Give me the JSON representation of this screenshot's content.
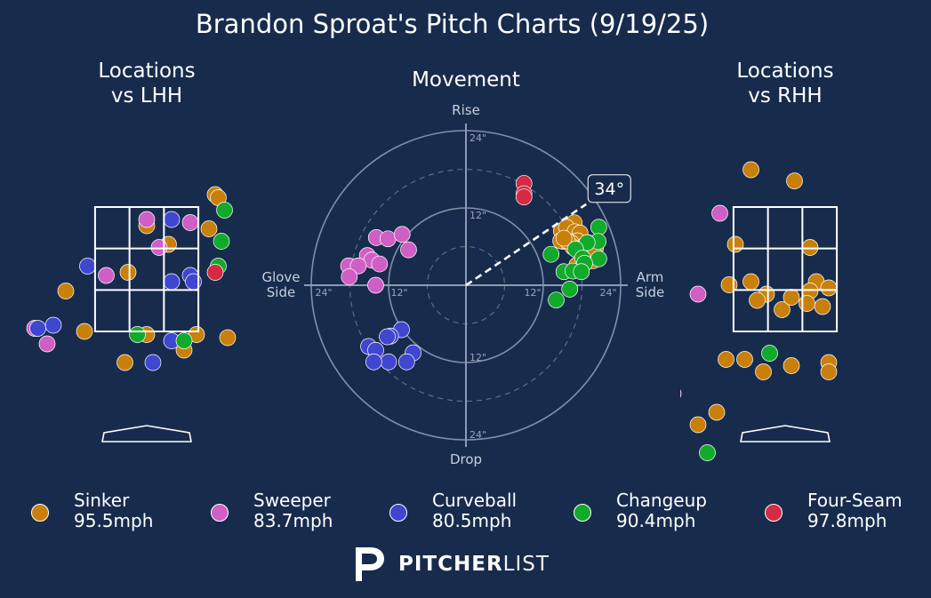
{
  "title": "Brandon Sproat's Pitch Charts (9/19/25)",
  "panels": {
    "lhh_title": "Locations\nvs LHH",
    "movement_title": "Movement",
    "rhh_title": "Locations\nvs RHH"
  },
  "movement_axes": {
    "top": "Rise",
    "bottom": "Drop",
    "left": "Glove\nSide",
    "right": "Arm\nSide",
    "ring_labels": [
      "12\"",
      "24\""
    ]
  },
  "arm_angle_label": "34°",
  "colors": {
    "background": "#172b4d",
    "Sinker": "#c9800a",
    "Sweeper": "#cf5fc4",
    "Curveball": "#3f46d0",
    "Changeup": "#12aa2a",
    "Four-Seam": "#d42a43"
  },
  "legend": [
    {
      "pitch": "Sinker",
      "speed": "95.5mph"
    },
    {
      "pitch": "Sweeper",
      "speed": "83.7mph"
    },
    {
      "pitch": "Curveball",
      "speed": "80.5mph"
    },
    {
      "pitch": "Changeup",
      "speed": "90.4mph"
    },
    {
      "pitch": "Four-Seam",
      "speed": "97.8mph"
    }
  ],
  "logo": {
    "bold": "PITCHER",
    "light": "LIST"
  },
  "chart_data": [
    {
      "type": "scatter",
      "title": "Locations vs LHH",
      "xlim": [
        -2.5,
        2.5
      ],
      "ylim": [
        -0.5,
        5.0
      ],
      "strike_zone": {
        "x": [
          -0.83,
          0.83
        ],
        "y": [
          1.5,
          3.5
        ]
      },
      "series": [
        {
          "name": "Sinker",
          "points": [
            [
              1.1,
              3.7
            ],
            [
              1.15,
              3.65
            ],
            [
              -0.0,
              3.2
            ],
            [
              1.0,
              3.15
            ],
            [
              0.35,
              2.9
            ],
            [
              -0.3,
              2.45
            ],
            [
              -1.3,
              2.15
            ],
            [
              -1.0,
              1.5
            ],
            [
              0.0,
              1.45
            ],
            [
              0.8,
              1.45
            ],
            [
              1.3,
              1.4
            ],
            [
              0.6,
              1.2
            ],
            [
              -0.35,
              1.0
            ]
          ]
        },
        {
          "name": "Sweeper",
          "points": [
            [
              -0.0,
              3.3
            ],
            [
              0.7,
              3.25
            ],
            [
              0.2,
              2.85
            ],
            [
              -0.65,
              2.4
            ],
            [
              -1.8,
              1.55
            ],
            [
              -1.6,
              1.3
            ]
          ]
        },
        {
          "name": "Curveball",
          "points": [
            [
              0.4,
              3.3
            ],
            [
              -0.95,
              2.55
            ],
            [
              0.4,
              2.3
            ],
            [
              0.7,
              2.4
            ],
            [
              0.75,
              2.3
            ],
            [
              -1.5,
              1.6
            ],
            [
              -1.75,
              1.55
            ],
            [
              0.4,
              1.35
            ],
            [
              0.1,
              1.0
            ]
          ]
        },
        {
          "name": "Changeup",
          "points": [
            [
              1.25,
              3.45
            ],
            [
              1.2,
              2.95
            ],
            [
              1.15,
              2.55
            ],
            [
              -0.15,
              1.45
            ],
            [
              0.6,
              1.35
            ]
          ]
        },
        {
          "name": "Four-Seam",
          "points": [
            [
              1.1,
              2.45
            ]
          ]
        }
      ]
    },
    {
      "type": "scatter",
      "title": "Movement",
      "xlabel": "Glove Side / Arm Side",
      "ylabel": "Drop / Rise",
      "xlim": [
        -24,
        24
      ],
      "ylim": [
        -24,
        24
      ],
      "arm_angle_deg": 34,
      "series": [
        {
          "name": "Sinker",
          "points": [
            [
              14.8,
              8.4
            ],
            [
              16.8,
              9.7
            ],
            [
              15.6,
              9.0
            ],
            [
              16.9,
              8.3
            ],
            [
              17.7,
              8.1
            ],
            [
              17.3,
              6.9
            ],
            [
              18.4,
              6.2
            ],
            [
              18.5,
              5.8
            ],
            [
              16.3,
              6.6
            ],
            [
              15.1,
              6.8
            ],
            [
              14.7,
              6.9
            ],
            [
              16.6,
              5.9
            ],
            [
              15.7,
              6.9
            ],
            [
              18.9,
              6.6
            ],
            [
              20.1,
              5.8
            ],
            [
              19.7,
              3.8
            ],
            [
              18.6,
              4.2
            ],
            [
              18.2,
              3.4
            ],
            [
              20.0,
              4.7
            ],
            [
              17.2,
              3.1
            ],
            [
              15.2,
              7.3
            ]
          ]
        },
        {
          "name": "Sweeper",
          "points": [
            [
              -13.9,
              7.4
            ],
            [
              -12.1,
              7.2
            ],
            [
              -9.9,
              7.9
            ],
            [
              -8.9,
              5.5
            ],
            [
              -15.3,
              4.6
            ],
            [
              -14.6,
              3.9
            ],
            [
              -18.2,
              3.0
            ],
            [
              -16.7,
              3.0
            ],
            [
              -13.4,
              3.3
            ],
            [
              -18.1,
              1.3
            ],
            [
              -14.0,
              0.0
            ]
          ]
        },
        {
          "name": "Curveball",
          "points": [
            [
              -10.0,
              -6.9
            ],
            [
              -11.7,
              -7.9
            ],
            [
              -12.2,
              -8.0
            ],
            [
              -15.1,
              -9.5
            ],
            [
              -14.0,
              -10.1
            ],
            [
              -8.2,
              -10.5
            ],
            [
              -12.0,
              -11.9
            ],
            [
              -14.3,
              -11.9
            ],
            [
              -9.2,
              -11.9
            ]
          ]
        },
        {
          "name": "Changeup",
          "points": [
            [
              20.6,
              9.0
            ],
            [
              20.5,
              6.8
            ],
            [
              18.8,
              6.6
            ],
            [
              13.2,
              4.8
            ],
            [
              17.0,
              5.6
            ],
            [
              20.6,
              4.1
            ],
            [
              18.1,
              4.2
            ],
            [
              18.4,
              3.4
            ],
            [
              15.2,
              2.1
            ],
            [
              16.6,
              2.2
            ],
            [
              17.9,
              2.1
            ],
            [
              16.1,
              -0.6
            ],
            [
              14.0,
              -2.3
            ]
          ]
        },
        {
          "name": "Four-Seam",
          "points": [
            [
              9.0,
              15.8
            ],
            [
              9.0,
              14.2
            ],
            [
              9.0,
              13.7
            ]
          ]
        }
      ]
    },
    {
      "type": "scatter",
      "title": "Locations vs RHH",
      "xlim": [
        -2.5,
        2.5
      ],
      "ylim": [
        -0.5,
        5.0
      ],
      "strike_zone": {
        "x": [
          -0.83,
          0.83
        ],
        "y": [
          1.5,
          3.5
        ]
      },
      "series": [
        {
          "name": "Sinker",
          "points": [
            [
              -0.55,
              4.1
            ],
            [
              0.15,
              3.92
            ],
            [
              -0.8,
              2.9
            ],
            [
              0.4,
              2.85
            ],
            [
              2.7,
              2.9
            ],
            [
              -0.9,
              2.25
            ],
            [
              -0.55,
              2.3
            ],
            [
              -0.3,
              2.1
            ],
            [
              -0.45,
              2.0
            ],
            [
              -0.05,
              1.85
            ],
            [
              0.5,
              2.3
            ],
            [
              0.4,
              2.15
            ],
            [
              0.1,
              2.05
            ],
            [
              0.35,
              1.95
            ],
            [
              0.7,
              2.2
            ],
            [
              0.6,
              1.9
            ],
            [
              -0.65,
              1.05
            ],
            [
              -0.35,
              0.85
            ],
            [
              -0.95,
              1.05
            ],
            [
              -1.1,
              0.2
            ],
            [
              -1.4,
              0.0
            ],
            [
              0.1,
              0.95
            ],
            [
              0.7,
              1.0
            ],
            [
              0.7,
              0.85
            ]
          ]
        },
        {
          "name": "Sweeper",
          "points": [
            [
              -1.05,
              3.4
            ],
            [
              -1.4,
              2.1
            ],
            [
              -2.1,
              1.7
            ],
            [
              -1.8,
              0.5
            ],
            [
              -2.1,
              0.05
            ],
            [
              -2.35,
              -0.05
            ],
            [
              -2.6,
              -0.1
            ]
          ]
        },
        {
          "name": "Curveball",
          "points": []
        },
        {
          "name": "Changeup",
          "points": [
            [
              -0.25,
              1.15
            ],
            [
              -1.25,
              -0.45
            ]
          ]
        },
        {
          "name": "Four-Seam",
          "points": []
        }
      ]
    }
  ]
}
